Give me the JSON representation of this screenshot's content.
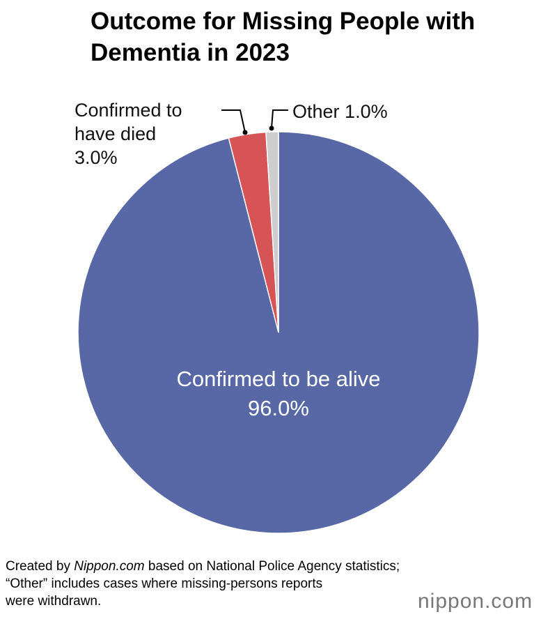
{
  "chart_data": {
    "type": "pie",
    "title": "Outcome for Missing People with Dementia in 2023",
    "categories": [
      "Confirmed to be alive",
      "Confirmed to have died",
      "Other"
    ],
    "values": [
      96.0,
      3.0,
      1.0
    ],
    "value_labels": [
      "96.0%",
      "3.0%",
      "1.0%"
    ],
    "colors": [
      "#5868a6",
      "#d65456",
      "#cdcdcd"
    ]
  },
  "footer": {
    "source_prefix": "Created by",
    "source_italic": "Nippon.com",
    "source_rest": "based on National Police Agency statistics;",
    "note": "“Other” includes cases where missing-persons reports were withdrawn.",
    "logo": "nippon.com"
  }
}
